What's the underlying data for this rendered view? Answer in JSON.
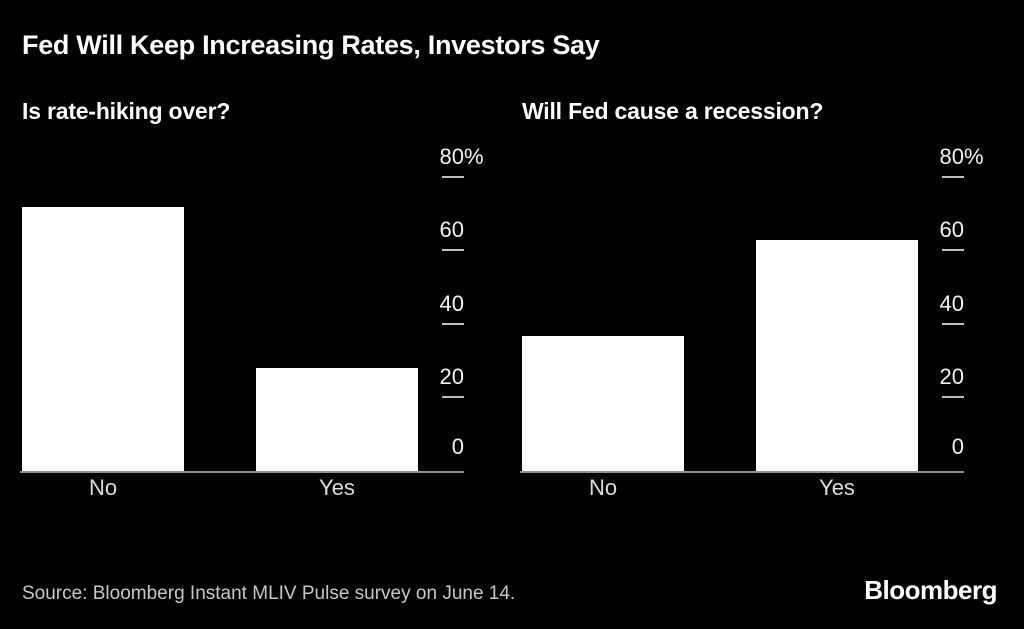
{
  "header": {
    "title": "Fed Will Keep Increasing Rates, Investors Say"
  },
  "footer": {
    "source": "Source: Bloomberg Instant MLIV Pulse survey on June 14.",
    "logo": "Bloomberg"
  },
  "colors": {
    "background": "#000000",
    "bar": "#ffffff",
    "title": "#ffffff",
    "subtitle": "#ffffff",
    "axis_line": "#919191",
    "tick_dash": "#bdbdbd",
    "tick_label": "#f1f1f1",
    "x_label": "#dcdcdc",
    "source_text": "#c7c7c7",
    "logo": "#ffffff"
  },
  "chart_data": [
    {
      "type": "bar",
      "title": "Is rate-hiking over?",
      "categories": [
        "No",
        "Yes"
      ],
      "values": [
        72,
        28
      ],
      "unit": "%",
      "xlabel": "",
      "ylabel": "",
      "ylim": [
        0,
        80
      ],
      "grid": false,
      "legend": "none",
      "yticks": [
        {
          "value": 80,
          "label": "80",
          "suffix": "%",
          "dash": true
        },
        {
          "value": 60,
          "label": "60",
          "suffix": "",
          "dash": true
        },
        {
          "value": 40,
          "label": "40",
          "suffix": "",
          "dash": true
        },
        {
          "value": 20,
          "label": "20",
          "suffix": "",
          "dash": true
        },
        {
          "value": 0,
          "label": "0",
          "suffix": "",
          "dash": false
        }
      ]
    },
    {
      "type": "bar",
      "title": "Will Fed cause a recession?",
      "categories": [
        "No",
        "Yes"
      ],
      "values": [
        37,
        63
      ],
      "unit": "%",
      "xlabel": "",
      "ylabel": "",
      "ylim": [
        0,
        80
      ],
      "grid": false,
      "legend": "none",
      "yticks": [
        {
          "value": 80,
          "label": "80",
          "suffix": "%",
          "dash": true
        },
        {
          "value": 60,
          "label": "60",
          "suffix": "",
          "dash": true
        },
        {
          "value": 40,
          "label": "40",
          "suffix": "",
          "dash": true
        },
        {
          "value": 20,
          "label": "20",
          "suffix": "",
          "dash": true
        },
        {
          "value": 0,
          "label": "0",
          "suffix": "",
          "dash": false
        }
      ]
    }
  ]
}
